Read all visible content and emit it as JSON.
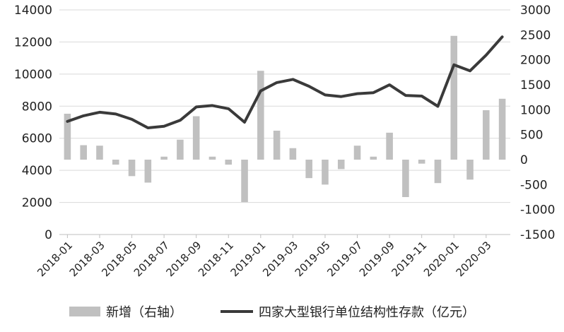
{
  "chart_data": {
    "type": "bar+line",
    "title": "",
    "categories": [
      "2018-01",
      "2018-02",
      "2018-03",
      "2018-04",
      "2018-05",
      "2018-06",
      "2018-07",
      "2018-08",
      "2018-09",
      "2018-10",
      "2018-11",
      "2018-12",
      "2019-01",
      "2019-02",
      "2019-03",
      "2019-04",
      "2019-05",
      "2019-06",
      "2019-07",
      "2019-08",
      "2019-09",
      "2019-10",
      "2019-11",
      "2019-12",
      "2020-01",
      "2020-02",
      "2020-03",
      "2020-04"
    ],
    "x_tick_labels": [
      "2018-01",
      "2018-03",
      "2018-05",
      "2018-07",
      "2018-09",
      "2018-11",
      "2019-01",
      "2019-03",
      "2019-05",
      "2019-07",
      "2019-09",
      "2019-11",
      "2020-01",
      "2020-03"
    ],
    "y_left": {
      "ylim": [
        0,
        14000
      ],
      "ticks": [
        "0",
        "2000",
        "4000",
        "6000",
        "8000",
        "10000",
        "12000",
        "14000"
      ]
    },
    "y_right": {
      "ylim": [
        -1500,
        3000
      ],
      "ticks": [
        "-1500",
        "-1000",
        "-500",
        "0",
        "500",
        "1000",
        "1500",
        "2000",
        "2500",
        "3000"
      ]
    },
    "series": [
      {
        "name": "新增（右轴）",
        "kind": "bar",
        "axis": "right",
        "color": "#c0c0c0",
        "values": [
          920,
          290,
          280,
          -100,
          -330,
          -460,
          60,
          400,
          870,
          60,
          -100,
          -850,
          1780,
          580,
          230,
          -370,
          -500,
          -190,
          280,
          60,
          540,
          -750,
          -80,
          -470,
          2480,
          -400,
          990,
          1220
        ]
      },
      {
        "name": "四家大型银行单位结构性存款（亿元）",
        "kind": "line",
        "axis": "left",
        "color": "#3a3a3a",
        "values": [
          7050,
          7400,
          7620,
          7510,
          7180,
          6650,
          6750,
          7120,
          7950,
          8040,
          7840,
          7000,
          8950,
          9470,
          9670,
          9240,
          8700,
          8600,
          8780,
          8840,
          9330,
          8670,
          8630,
          7990,
          10580,
          10200,
          11180,
          12320
        ]
      }
    ],
    "legend": {
      "placement": "bottom",
      "items": [
        "新增（右轴）",
        "四家大型银行单位结构性存款（亿元）"
      ]
    },
    "grid": true
  }
}
